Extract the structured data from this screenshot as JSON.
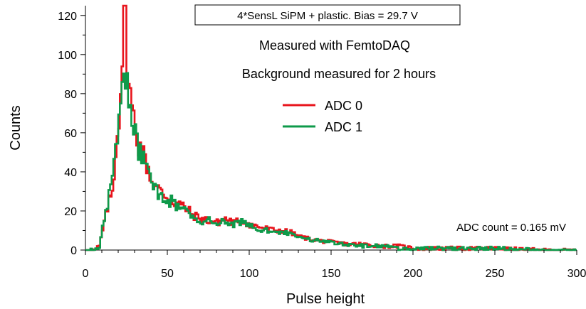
{
  "chart_data": {
    "type": "line",
    "title": "",
    "xlabel": "Pulse height",
    "ylabel": "Counts",
    "xlim": [
      0,
      300
    ],
    "ylim": [
      0,
      125
    ],
    "x_ticks": [
      0,
      50,
      100,
      150,
      200,
      250,
      300
    ],
    "x_tick_labels": [
      "0",
      "50",
      "100",
      "150",
      "200",
      "250",
      "300"
    ],
    "y_ticks": [
      0,
      20,
      40,
      60,
      80,
      100,
      120
    ],
    "y_tick_labels": [
      "0",
      "20",
      "40",
      "60",
      "80",
      "100",
      "120"
    ],
    "grid": false,
    "legend_position": "upper-center",
    "annotations": {
      "boxed_title": "4*SensL SiPM + plastic. Bias = 29.7 V",
      "line1": "Measured with FemtoDAQ",
      "line2": "Background measured for 2 hours",
      "conversion": "ADC count = 0.165 mV"
    },
    "series": [
      {
        "name": "ADC 0",
        "color": "#e8141c",
        "x": [
          0,
          5,
          8,
          10,
          12,
          14,
          16,
          18,
          20,
          22,
          23,
          24,
          25,
          26,
          27,
          28,
          30,
          32,
          35,
          38,
          40,
          45,
          50,
          55,
          60,
          65,
          70,
          75,
          80,
          85,
          90,
          95,
          100,
          105,
          110,
          115,
          120,
          125,
          130,
          140,
          150,
          160,
          170,
          180,
          190,
          200,
          220,
          250,
          280,
          300
        ],
        "y": [
          0,
          0,
          2,
          10,
          18,
          25,
          30,
          50,
          70,
          100,
          122,
          118,
          100,
          85,
          78,
          72,
          62,
          55,
          48,
          42,
          35,
          30,
          27,
          24,
          22,
          18,
          16,
          15,
          14,
          16,
          14,
          15,
          13,
          12,
          11,
          10,
          10,
          9,
          7,
          5,
          4,
          3,
          3,
          2,
          2,
          1,
          1,
          1,
          0,
          0
        ]
      },
      {
        "name": "ADC 1",
        "color": "#0e9a4a",
        "x": [
          0,
          5,
          8,
          10,
          12,
          14,
          16,
          18,
          20,
          22,
          23,
          24,
          25,
          26,
          27,
          28,
          30,
          32,
          35,
          38,
          40,
          45,
          50,
          55,
          60,
          65,
          70,
          75,
          80,
          85,
          90,
          95,
          100,
          105,
          110,
          115,
          120,
          125,
          130,
          140,
          150,
          160,
          170,
          180,
          190,
          200,
          220,
          250,
          280,
          300
        ],
        "y": [
          0,
          0,
          2,
          12,
          20,
          28,
          35,
          55,
          65,
          80,
          90,
          88,
          82,
          78,
          75,
          68,
          60,
          52,
          45,
          40,
          34,
          29,
          26,
          23,
          21,
          17,
          15,
          15,
          14,
          14,
          13,
          14,
          12,
          11,
          10,
          10,
          9,
          8,
          6,
          5,
          4,
          3,
          2,
          2,
          1,
          1,
          1,
          1,
          0,
          0
        ]
      }
    ]
  }
}
